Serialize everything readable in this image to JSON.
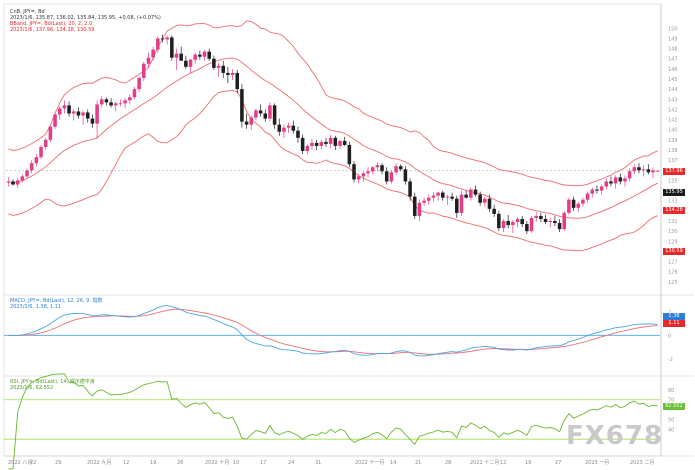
{
  "chart_data": [
    {
      "type": "candlestick",
      "legend": {
        "line1": "CnB, JPY=, Bd",
        "line2": "2023/1/6, 135.87, 136.02, 135.84, 135.95, +0.08, (+0.07%)",
        "line3": "BBand, JPY=, Bd(Last), 20, 2, 2.0",
        "line4": "2023/1/6, 137.96, 134.28, 130.59"
      },
      "ylim": [
        124,
        152
      ],
      "yticks": [
        "150",
        "149",
        "148",
        "147",
        "146",
        "145",
        "144",
        "143",
        "142",
        "141",
        "140",
        "139",
        "138",
        "137",
        "136",
        "135",
        "134",
        "133",
        "132",
        "131",
        "130",
        "129",
        "128",
        "127",
        "126",
        "125"
      ],
      "tags": {
        "upper": "137.96",
        "last": "135.95",
        "mid": "134.28",
        "lower": "130.59"
      },
      "candles": [
        [
          0,
          134.8,
          135.3,
          134.4,
          134.9
        ],
        [
          1,
          134.9,
          135.1,
          134.5,
          134.6
        ],
        [
          2,
          134.6,
          135.2,
          134.3,
          135.0
        ],
        [
          3,
          135.0,
          135.6,
          134.8,
          135.4
        ],
        [
          4,
          135.4,
          136.2,
          135.2,
          136.0
        ],
        [
          5,
          136.0,
          137.0,
          135.7,
          136.7
        ],
        [
          6,
          136.7,
          137.6,
          136.4,
          137.3
        ],
        [
          7,
          137.3,
          138.5,
          137.1,
          138.3
        ],
        [
          8,
          138.3,
          139.2,
          138.0,
          139.0
        ],
        [
          9,
          139.0,
          140.5,
          138.8,
          140.3
        ],
        [
          10,
          140.3,
          141.6,
          140.1,
          141.5
        ],
        [
          11,
          141.5,
          142.3,
          141.0,
          142.1
        ],
        [
          12,
          142.1,
          142.9,
          141.6,
          142.4
        ],
        [
          13,
          142.4,
          142.8,
          141.3,
          141.6
        ],
        [
          14,
          141.6,
          142.0,
          140.9,
          141.8
        ],
        [
          15,
          141.8,
          142.2,
          141.1,
          141.4
        ],
        [
          16,
          141.4,
          141.9,
          140.5,
          141.7
        ],
        [
          17,
          141.7,
          142.0,
          140.7,
          141.1
        ],
        [
          18,
          141.1,
          141.5,
          140.2,
          140.6
        ],
        [
          19,
          140.6,
          142.9,
          139.1,
          142.5
        ],
        [
          20,
          142.5,
          143.3,
          142.2,
          143.0
        ],
        [
          21,
          143.0,
          143.2,
          142.4,
          142.7
        ],
        [
          22,
          142.7,
          143.1,
          142.2,
          142.4
        ],
        [
          23,
          142.4,
          142.8,
          141.8,
          142.6
        ],
        [
          24,
          142.6,
          143.0,
          142.3,
          142.6
        ],
        [
          25,
          142.6,
          143.1,
          142.1,
          142.9
        ],
        [
          26,
          142.9,
          143.5,
          142.5,
          143.2
        ],
        [
          27,
          143.2,
          144.2,
          143.0,
          144.0
        ],
        [
          28,
          144.0,
          145.3,
          143.7,
          145.1
        ],
        [
          29,
          145.1,
          146.7,
          144.8,
          146.5
        ],
        [
          30,
          146.5,
          147.6,
          146.1,
          147.1
        ],
        [
          31,
          147.1,
          148.2,
          146.8,
          147.9
        ],
        [
          32,
          147.9,
          149.2,
          147.6,
          149.0
        ],
        [
          33,
          149.0,
          149.4,
          148.6,
          148.9
        ],
        [
          34,
          148.9,
          149.3,
          148.4,
          149.1
        ],
        [
          35,
          149.1,
          149.3,
          146.8,
          147.1
        ],
        [
          36,
          147.1,
          148.0,
          145.9,
          147.5
        ],
        [
          37,
          147.5,
          148.2,
          147.0,
          146.8
        ],
        [
          38,
          146.8,
          147.3,
          146.0,
          146.2
        ],
        [
          39,
          146.2,
          147.0,
          145.6,
          146.9
        ],
        [
          40,
          146.9,
          147.6,
          146.5,
          147.4
        ],
        [
          41,
          147.4,
          147.8,
          146.9,
          147.2
        ],
        [
          42,
          147.2,
          147.9,
          146.8,
          147.7
        ],
        [
          43,
          147.7,
          148.0,
          146.8,
          147.0
        ],
        [
          44,
          147.0,
          147.3,
          145.9,
          146.1
        ],
        [
          45,
          146.1,
          146.6,
          145.2,
          146.3
        ],
        [
          46,
          146.3,
          146.8,
          145.1,
          145.6
        ],
        [
          47,
          145.6,
          146.2,
          144.6,
          145.4
        ],
        [
          48,
          145.4,
          146.0,
          144.9,
          145.6
        ],
        [
          49,
          145.6,
          145.9,
          143.6,
          144.0
        ],
        [
          50,
          144.0,
          144.5,
          140.2,
          140.8
        ],
        [
          51,
          140.8,
          141.6,
          140.1,
          140.5
        ],
        [
          52,
          140.5,
          141.4,
          140.0,
          141.2
        ],
        [
          53,
          141.2,
          142.1,
          140.9,
          141.9
        ],
        [
          54,
          141.9,
          142.5,
          141.3,
          141.6
        ],
        [
          55,
          141.6,
          142.0,
          140.8,
          141.1
        ],
        [
          56,
          141.1,
          142.7,
          140.8,
          142.4
        ],
        [
          57,
          142.4,
          142.6,
          140.1,
          140.5
        ],
        [
          58,
          140.5,
          141.1,
          139.4,
          139.8
        ],
        [
          59,
          139.8,
          140.5,
          139.2,
          140.2
        ],
        [
          60,
          140.2,
          140.7,
          139.7,
          140.4
        ],
        [
          61,
          140.4,
          140.9,
          139.6,
          139.9
        ],
        [
          62,
          139.9,
          140.3,
          138.7,
          139.2
        ],
        [
          63,
          139.2,
          139.5,
          137.6,
          137.9
        ],
        [
          64,
          137.9,
          138.6,
          137.6,
          138.4
        ],
        [
          65,
          138.4,
          139.1,
          138.0,
          138.7
        ],
        [
          66,
          138.7,
          139.0,
          138.0,
          138.4
        ],
        [
          67,
          138.4,
          139.0,
          138.1,
          138.8
        ],
        [
          68,
          138.8,
          139.2,
          138.3,
          138.6
        ],
        [
          69,
          138.6,
          139.5,
          138.2,
          139.2
        ],
        [
          70,
          139.2,
          139.4,
          138.0,
          138.4
        ],
        [
          71,
          138.4,
          139.0,
          138.1,
          138.9
        ],
        [
          72,
          138.9,
          139.3,
          138.4,
          138.5
        ],
        [
          73,
          138.5,
          138.8,
          136.3,
          136.6
        ],
        [
          74,
          136.6,
          136.9,
          134.8,
          135.1
        ],
        [
          75,
          135.1,
          135.6,
          134.7,
          135.4
        ],
        [
          76,
          135.4,
          135.9,
          134.9,
          135.7
        ],
        [
          77,
          135.7,
          136.3,
          135.3,
          135.9
        ],
        [
          78,
          135.9,
          136.4,
          135.6,
          136.3
        ],
        [
          79,
          136.3,
          136.8,
          135.9,
          136.5
        ],
        [
          80,
          136.5,
          136.7,
          135.6,
          135.9
        ],
        [
          81,
          135.9,
          136.3,
          134.6,
          134.9
        ],
        [
          82,
          134.9,
          136.0,
          134.7,
          135.8
        ],
        [
          83,
          135.8,
          136.7,
          135.5,
          136.4
        ],
        [
          84,
          136.4,
          136.6,
          135.9,
          136.1
        ],
        [
          85,
          136.1,
          136.4,
          134.6,
          134.9
        ],
        [
          86,
          134.9,
          135.2,
          133.0,
          133.4
        ],
        [
          87,
          133.4,
          133.8,
          131.2,
          131.5
        ],
        [
          88,
          131.5,
          133.1,
          131.0,
          132.8
        ],
        [
          89,
          132.8,
          133.3,
          132.5,
          133.0
        ],
        [
          90,
          133.0,
          133.6,
          132.6,
          133.3
        ],
        [
          91,
          133.3,
          133.8,
          132.9,
          133.5
        ],
        [
          92,
          133.5,
          133.9,
          133.0,
          133.8
        ],
        [
          93,
          133.8,
          134.0,
          133.0,
          133.3
        ],
        [
          94,
          133.3,
          133.6,
          132.6,
          133.4
        ],
        [
          95,
          133.4,
          133.8,
          133.0,
          133.2
        ],
        [
          96,
          133.2,
          133.5,
          131.3,
          131.8
        ],
        [
          97,
          131.8,
          134.0,
          131.5,
          133.6
        ],
        [
          98,
          133.6,
          134.0,
          133.2,
          133.3
        ],
        [
          99,
          133.3,
          134.3,
          133.0,
          134.1
        ],
        [
          100,
          134.1,
          134.5,
          133.4,
          133.6
        ],
        [
          101,
          133.6,
          133.9,
          132.5,
          132.8
        ],
        [
          102,
          132.8,
          133.4,
          132.4,
          133.2
        ],
        [
          103,
          133.2,
          133.6,
          131.9,
          132.2
        ],
        [
          104,
          132.2,
          132.6,
          131.4,
          131.7
        ],
        [
          105,
          131.7,
          132.0,
          130.0,
          130.3
        ],
        [
          106,
          130.3,
          131.2,
          129.9,
          131.0
        ],
        [
          107,
          131.0,
          131.6,
          130.3,
          130.6
        ],
        [
          108,
          130.6,
          131.1,
          129.8,
          130.9
        ],
        [
          109,
          130.9,
          131.4,
          130.4,
          131.2
        ],
        [
          110,
          131.2,
          131.5,
          130.4,
          130.7
        ],
        [
          111,
          130.7,
          131.0,
          129.7,
          130.0
        ],
        [
          112,
          130.0,
          131.5,
          129.8,
          131.3
        ],
        [
          113,
          131.3,
          131.9,
          130.9,
          131.5
        ],
        [
          114,
          131.5,
          131.8,
          130.9,
          131.2
        ],
        [
          115,
          131.2,
          131.6,
          130.7,
          130.9
        ],
        [
          116,
          130.9,
          131.3,
          130.4,
          131.0
        ],
        [
          117,
          131.0,
          131.5,
          130.5,
          130.8
        ],
        [
          118,
          130.8,
          131.2,
          129.9,
          130.2
        ],
        [
          119,
          130.2,
          132.0,
          130.0,
          131.8
        ],
        [
          120,
          131.8,
          133.3,
          131.6,
          133.1
        ],
        [
          121,
          133.1,
          133.4,
          132.0,
          132.3
        ],
        [
          122,
          132.3,
          132.9,
          131.9,
          132.7
        ],
        [
          123,
          132.7,
          133.3,
          132.4,
          133.1
        ],
        [
          124,
          133.1,
          133.9,
          132.8,
          133.7
        ],
        [
          125,
          133.7,
          134.3,
          133.3,
          134.1
        ],
        [
          126,
          134.1,
          134.5,
          133.7,
          134.0
        ],
        [
          127,
          134.0,
          134.6,
          133.6,
          134.4
        ],
        [
          128,
          134.4,
          135.2,
          134.1,
          134.9
        ],
        [
          129,
          134.9,
          135.4,
          134.4,
          134.7
        ],
        [
          130,
          134.7,
          135.5,
          134.2,
          135.3
        ],
        [
          131,
          135.3,
          135.7,
          134.6,
          134.9
        ],
        [
          132,
          134.9,
          135.5,
          134.4,
          135.2
        ],
        [
          133,
          135.2,
          136.2,
          134.9,
          135.9
        ],
        [
          134,
          135.9,
          136.6,
          135.6,
          136.3
        ],
        [
          135,
          136.3,
          136.7,
          135.7,
          136.0
        ],
        [
          136,
          136.0,
          136.5,
          135.4,
          136.1
        ],
        [
          137,
          136.1,
          136.6,
          135.6,
          135.8
        ],
        [
          138,
          135.8,
          136.3,
          135.2,
          136.0
        ],
        [
          139,
          135.87,
          136.02,
          135.84,
          135.95
        ]
      ]
    },
    {
      "type": "line",
      "legend": {
        "line1": "MACD, JPY=, Bd(Last), 12, 26, 9, 指数",
        "line2": "2023/1/6, 1.38, 1.11"
      },
      "tags": {
        "macd": "1.38",
        "signal": "1.11"
      },
      "series": []
    },
    {
      "type": "line",
      "legend": {
        "line1": "RSI, JPY=, Bd(Last), 14, 威尔德平滑",
        "line2": "2023/1/6, 62.552"
      },
      "tags": {
        "rsi": "62.552"
      },
      "series": []
    }
  ],
  "x_labels": [
    "2022 八月",
    "22",
    "29",
    "2022 九月",
    "12",
    "19",
    "26",
    "2022 十月",
    "10",
    "17",
    "24",
    "31",
    "2022 十一月",
    "14",
    "21",
    "28",
    "2022 十二月",
    "12",
    "19",
    "27",
    "2023 一月",
    "2023 二月"
  ],
  "colors": {
    "up": "#e33d87",
    "down": "#1f1f1f",
    "band": "#f06c6c",
    "macd": "#4aa5e8",
    "signal": "#f07070",
    "rsi": "#6ab82e",
    "hline_macd": "#4da6ea",
    "hline_rsi": "#9be04e",
    "tag_red": "#e8292b",
    "tag_last": "#1a1a1a",
    "tag_blue": "#2b7ed8",
    "tag_green": "#6dbd36"
  },
  "watermark": "FX678"
}
